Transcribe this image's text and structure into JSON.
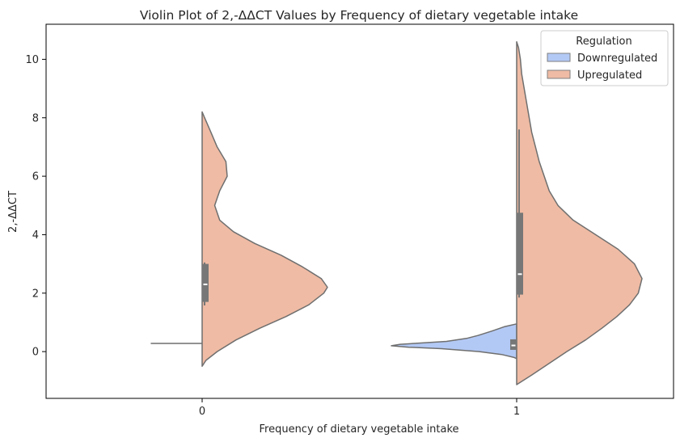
{
  "chart_data": {
    "type": "violin",
    "title": "Violin Plot of 2,-ΔΔCT Values by Frequency of dietary vegetable intake",
    "xlabel": "Frequency of dietary vegetable intake",
    "ylabel": "2,-ΔΔCT",
    "categories": [
      "0",
      "1"
    ],
    "ylim": [
      -1.6,
      11.2
    ],
    "yticks": [
      0,
      2,
      4,
      6,
      8,
      10
    ],
    "grid": false,
    "split": true,
    "legend": {
      "title": "Regulation",
      "position": "top-right",
      "entries": [
        "Downregulated",
        "Upregulated"
      ]
    },
    "series": [
      {
        "name": "Downregulated",
        "color": "#b3c9f5",
        "side": "left",
        "violins": [
          {
            "category": "0",
            "degenerate_value": 0.28,
            "width_fraction": 0.41
          },
          {
            "category": "1",
            "profile": [
              [
                -0.24,
                0.0
              ],
              [
                -0.2,
                0.02
              ],
              [
                -0.1,
                0.12
              ],
              [
                0.0,
                0.3
              ],
              [
                0.1,
                0.6
              ],
              [
                0.15,
                0.86
              ],
              [
                0.2,
                1.0
              ],
              [
                0.25,
                0.93
              ],
              [
                0.3,
                0.74
              ],
              [
                0.35,
                0.56
              ],
              [
                0.45,
                0.4
              ],
              [
                0.55,
                0.31
              ],
              [
                0.7,
                0.2
              ],
              [
                0.85,
                0.1
              ],
              [
                0.95,
                0.0
              ]
            ],
            "width_fraction": 1.0,
            "box": {
              "q1": 0.06,
              "median": 0.21,
              "q3": 0.42,
              "whisker_low": 0.06,
              "whisker_high": 0.42
            }
          }
        ]
      },
      {
        "name": "Upregulated",
        "color": "#efbba4",
        "side": "right",
        "violins": [
          {
            "category": "0",
            "profile": [
              [
                -0.5,
                0.0
              ],
              [
                -0.3,
                0.03
              ],
              [
                0.0,
                0.12
              ],
              [
                0.4,
                0.27
              ],
              [
                0.8,
                0.46
              ],
              [
                1.2,
                0.67
              ],
              [
                1.6,
                0.85
              ],
              [
                2.0,
                0.97
              ],
              [
                2.2,
                1.0
              ],
              [
                2.5,
                0.95
              ],
              [
                2.9,
                0.8
              ],
              [
                3.3,
                0.63
              ],
              [
                3.7,
                0.42
              ],
              [
                4.1,
                0.25
              ],
              [
                4.5,
                0.14
              ],
              [
                5.0,
                0.1
              ],
              [
                5.5,
                0.14
              ],
              [
                6.0,
                0.2
              ],
              [
                6.5,
                0.19
              ],
              [
                7.0,
                0.12
              ],
              [
                7.5,
                0.07
              ],
              [
                8.0,
                0.02
              ],
              [
                8.2,
                0.0
              ]
            ],
            "width_fraction": 1.0,
            "box": {
              "q1": 1.7,
              "median": 2.3,
              "q3": 3.0,
              "whisker_low": 1.58,
              "whisker_high": 3.05
            }
          },
          {
            "category": "1",
            "profile": [
              [
                -1.13,
                0.0
              ],
              [
                -0.8,
                0.12
              ],
              [
                -0.4,
                0.26
              ],
              [
                0.0,
                0.4
              ],
              [
                0.4,
                0.55
              ],
              [
                0.8,
                0.68
              ],
              [
                1.2,
                0.8
              ],
              [
                1.6,
                0.9
              ],
              [
                2.0,
                0.97
              ],
              [
                2.5,
                1.0
              ],
              [
                3.0,
                0.94
              ],
              [
                3.5,
                0.81
              ],
              [
                4.0,
                0.63
              ],
              [
                4.5,
                0.45
              ],
              [
                5.0,
                0.33
              ],
              [
                5.5,
                0.26
              ],
              [
                6.0,
                0.22
              ],
              [
                6.5,
                0.18
              ],
              [
                7.0,
                0.15
              ],
              [
                7.5,
                0.12
              ],
              [
                8.0,
                0.1
              ],
              [
                8.5,
                0.08
              ],
              [
                9.0,
                0.06
              ],
              [
                9.5,
                0.04
              ],
              [
                10.0,
                0.03
              ],
              [
                10.4,
                0.015
              ],
              [
                10.6,
                0.0
              ]
            ],
            "width_fraction": 1.0,
            "box": {
              "q1": 1.95,
              "median": 2.65,
              "q3": 4.75,
              "whisker_low": 1.85,
              "whisker_high": 7.6
            }
          }
        ]
      }
    ]
  }
}
